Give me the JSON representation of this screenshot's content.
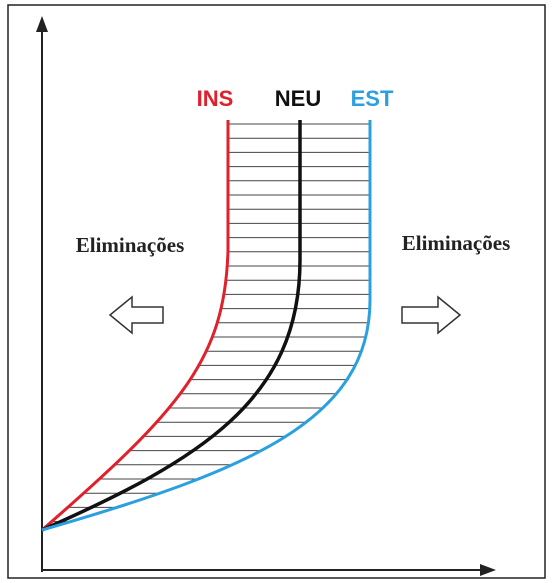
{
  "curves": {
    "ins": "INS",
    "neu": "NEU",
    "est": "EST"
  },
  "annotations": {
    "left": "Eliminações",
    "right": "Eliminações"
  }
}
